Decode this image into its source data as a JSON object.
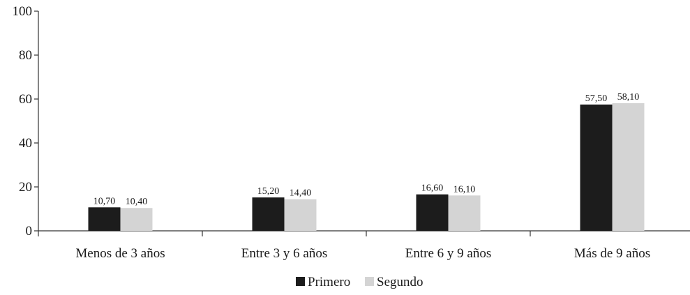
{
  "chart_data": {
    "type": "bar",
    "title": "",
    "xlabel": "",
    "ylabel": "",
    "categories": [
      "Menos de 3 años",
      "Entre 3 y 6 años",
      "Entre 6 y 9 años",
      "Más de 9 años"
    ],
    "series": [
      {
        "name": "Primero",
        "color": "#1c1c1c",
        "values": [
          10.7,
          15.2,
          16.6,
          57.5
        ],
        "labels": [
          "10,70",
          "15,20",
          "16,60",
          "57,50"
        ]
      },
      {
        "name": "Segundo",
        "color": "#d4d4d4",
        "values": [
          10.4,
          14.4,
          16.1,
          58.1
        ],
        "labels": [
          "10,40",
          "14,40",
          "16,10",
          "58,10"
        ]
      }
    ],
    "ylim": [
      0,
      100
    ],
    "yticks": [
      0,
      20,
      40,
      60,
      80,
      100
    ],
    "grid": false,
    "legend_position": "bottom-center"
  }
}
